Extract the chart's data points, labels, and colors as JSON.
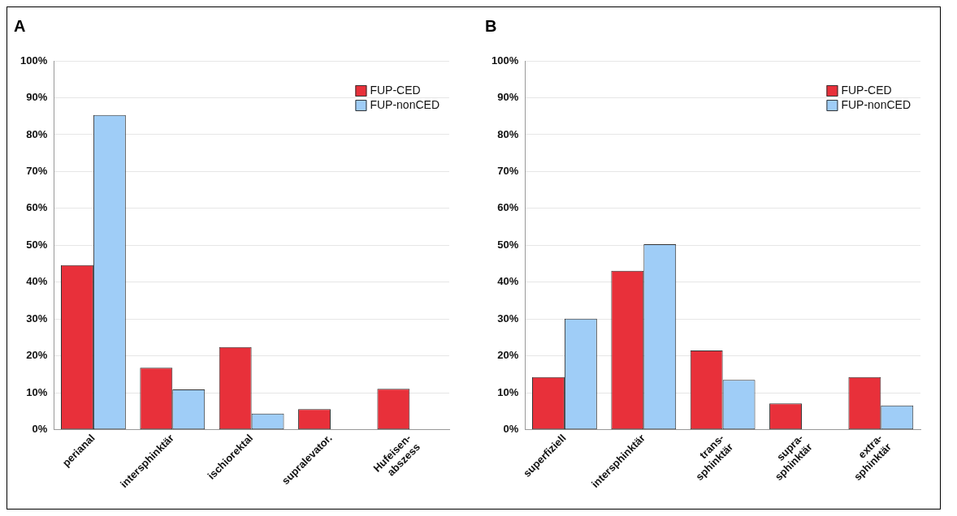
{
  "chart_data": [
    {
      "type": "bar",
      "title": "A",
      "categories": [
        "perianal",
        "intersphinktär",
        "ischiorektal",
        "supralevator.",
        "Hufeisen-\nabszess"
      ],
      "series": [
        {
          "name": "FUP-CED",
          "color": "#e8303a",
          "values": [
            44.6,
            16.8,
            22.4,
            5.6,
            11.1
          ]
        },
        {
          "name": "FUP-nonCED",
          "color": "#9fcdf7",
          "values": [
            85.3,
            10.9,
            4.4,
            0,
            0
          ]
        }
      ],
      "ylim": [
        0,
        100
      ],
      "yticks": [
        {
          "value": 0,
          "label": "0%"
        },
        {
          "value": 10,
          "label": "10%"
        },
        {
          "value": 20,
          "label": "20%"
        },
        {
          "value": 30,
          "label": "30%"
        },
        {
          "value": 40,
          "label": "40%"
        },
        {
          "value": 50,
          "label": "50%"
        },
        {
          "value": 60,
          "label": "60%"
        },
        {
          "value": 70,
          "label": "70%"
        },
        {
          "value": 80,
          "label": "80%"
        },
        {
          "value": 90,
          "label": "90%"
        },
        {
          "value": 100,
          "label": "100%"
        }
      ],
      "grid": "y",
      "legend": "top right"
    },
    {
      "type": "bar",
      "title": "B",
      "categories": [
        "superfiziell",
        "intersphinktär",
        "trans-\nsphinktär",
        "supra-\nsphinktär",
        "extra-\nsphinktär"
      ],
      "series": [
        {
          "name": "FUP-CED",
          "color": "#e8303a",
          "values": [
            14.3,
            43.1,
            21.5,
            7.1,
            14.3
          ]
        },
        {
          "name": "FUP-nonCED",
          "color": "#9fcdf7",
          "values": [
            30.1,
            50.3,
            13.5,
            0,
            6.6
          ]
        }
      ],
      "ylim": [
        0,
        100
      ],
      "yticks": [
        {
          "value": 0,
          "label": "0%"
        },
        {
          "value": 10,
          "label": "10%"
        },
        {
          "value": 20,
          "label": "20%"
        },
        {
          "value": 30,
          "label": "30%"
        },
        {
          "value": 40,
          "label": "40%"
        },
        {
          "value": 50,
          "label": "50%"
        },
        {
          "value": 60,
          "label": "60%"
        },
        {
          "value": 70,
          "label": "70%"
        },
        {
          "value": 80,
          "label": "80%"
        },
        {
          "value": 90,
          "label": "90%"
        },
        {
          "value": 100,
          "label": "100%"
        }
      ],
      "grid": "y",
      "legend": "top right"
    }
  ]
}
